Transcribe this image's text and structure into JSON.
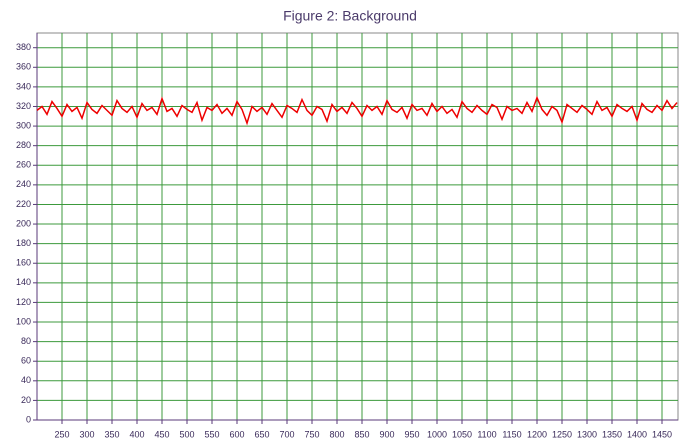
{
  "chart_data": {
    "type": "line",
    "title": "Figure 2: Background",
    "x": [
      200,
      210,
      220,
      230,
      240,
      250,
      260,
      270,
      280,
      290,
      300,
      310,
      320,
      330,
      340,
      350,
      360,
      370,
      380,
      390,
      400,
      410,
      420,
      430,
      440,
      450,
      460,
      470,
      480,
      490,
      500,
      510,
      520,
      530,
      540,
      550,
      560,
      570,
      580,
      590,
      600,
      610,
      620,
      630,
      640,
      650,
      660,
      670,
      680,
      690,
      700,
      710,
      720,
      730,
      740,
      750,
      760,
      770,
      780,
      790,
      800,
      810,
      820,
      830,
      840,
      850,
      860,
      870,
      880,
      890,
      900,
      910,
      920,
      930,
      940,
      950,
      960,
      970,
      980,
      990,
      1000,
      1010,
      1020,
      1030,
      1040,
      1050,
      1060,
      1070,
      1080,
      1090,
      1100,
      1110,
      1120,
      1130,
      1140,
      1150,
      1160,
      1170,
      1180,
      1190,
      1200,
      1210,
      1220,
      1230,
      1240,
      1250,
      1260,
      1270,
      1280,
      1290,
      1300,
      1310,
      1320,
      1330,
      1340,
      1350,
      1360,
      1370,
      1380,
      1390,
      1400,
      1410,
      1420,
      1430,
      1440,
      1450,
      1460,
      1470,
      1480
    ],
    "series": [
      {
        "color": "#ee0000",
        "values": [
          316,
          320,
          312,
          325,
          318,
          310,
          322,
          315,
          319,
          308,
          324,
          317,
          313,
          321,
          316,
          311,
          326,
          318,
          314,
          320,
          309,
          323,
          316,
          319,
          312,
          328,
          315,
          318,
          310,
          321,
          317,
          314,
          324,
          306,
          319,
          316,
          322,
          313,
          318,
          311,
          325,
          317,
          303,
          320,
          315,
          319,
          312,
          323,
          316,
          309,
          321,
          318,
          314,
          327,
          316,
          311,
          320,
          317,
          305,
          322,
          315,
          319,
          313,
          324,
          318,
          310,
          321,
          316,
          320,
          312,
          326,
          317,
          314,
          319,
          308,
          322,
          316,
          318,
          311,
          323,
          315,
          320,
          313,
          317,
          309,
          325,
          318,
          314,
          321,
          316,
          312,
          322,
          319,
          307,
          320,
          316,
          318,
          313,
          324,
          315,
          329,
          317,
          311,
          320,
          316,
          304,
          322,
          318,
          314,
          321,
          317,
          312,
          325,
          316,
          319,
          310,
          322,
          318,
          315,
          320,
          306,
          323,
          317,
          314,
          321,
          316,
          326,
          318,
          324
        ]
      }
    ],
    "xlim": [
      200,
      1482
    ],
    "ylim": [
      0,
      395
    ],
    "xticks": [
      250,
      300,
      350,
      400,
      450,
      500,
      550,
      600,
      650,
      700,
      750,
      800,
      850,
      900,
      950,
      1000,
      1050,
      1100,
      1150,
      1200,
      1250,
      1300,
      1350,
      1400,
      1450
    ],
    "yticks": [
      0,
      20,
      40,
      60,
      80,
      100,
      120,
      140,
      160,
      180,
      200,
      220,
      240,
      260,
      280,
      300,
      320,
      340,
      360,
      380
    ],
    "grid": true,
    "grid_color": "#3c9a3c"
  }
}
